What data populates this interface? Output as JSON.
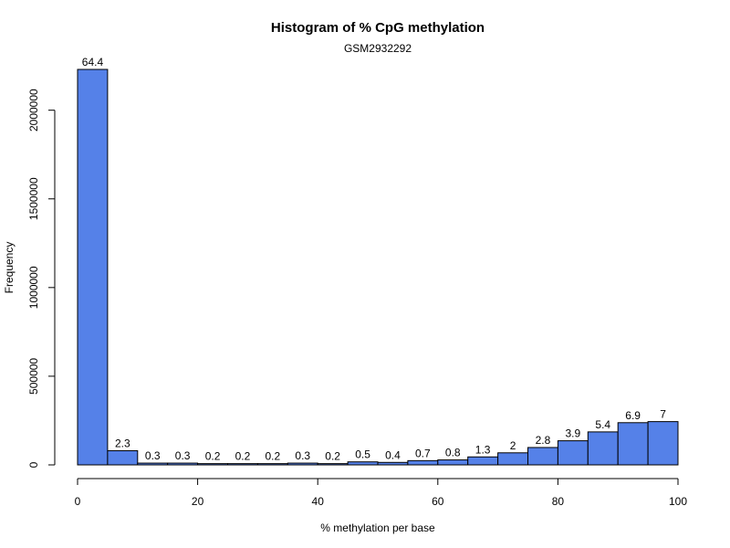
{
  "chart_data": {
    "type": "bar",
    "title": "Histogram of % CpG methylation",
    "subtitle": "GSM2932292",
    "xlabel": "% methylation per base",
    "ylabel": "Frequency",
    "bin_edges": [
      0,
      5,
      10,
      15,
      20,
      25,
      30,
      35,
      40,
      45,
      50,
      55,
      60,
      65,
      70,
      75,
      80,
      85,
      90,
      95,
      100
    ],
    "values": [
      2230000,
      80000,
      10000,
      10000,
      7000,
      7000,
      7000,
      10000,
      7000,
      17000,
      14000,
      24000,
      28000,
      45000,
      68000,
      98000,
      136000,
      186000,
      238000,
      244000
    ],
    "bar_labels": [
      "64.4",
      "2.3",
      "0.3",
      "0.3",
      "0.2",
      "0.2",
      "0.2",
      "0.3",
      "0.2",
      "0.5",
      "0.4",
      "0.7",
      "0.8",
      "1.3",
      "2",
      "2.8",
      "3.9",
      "5.4",
      "6.9",
      "7"
    ],
    "xlim": [
      0,
      100
    ],
    "ylim": [
      0,
      2230000
    ],
    "x_ticks": [
      0,
      20,
      40,
      60,
      80,
      100
    ],
    "x_tick_labels": [
      "0",
      "20",
      "40",
      "60",
      "80",
      "100"
    ],
    "y_ticks": [
      0,
      500000,
      1000000,
      1500000,
      2000000
    ],
    "y_tick_labels": [
      "0",
      "500000",
      "1000000",
      "1500000",
      "2000000"
    ],
    "bar_color": "#5581E8",
    "bar_edge_color": "#000000",
    "grid": false,
    "legend": "none"
  }
}
